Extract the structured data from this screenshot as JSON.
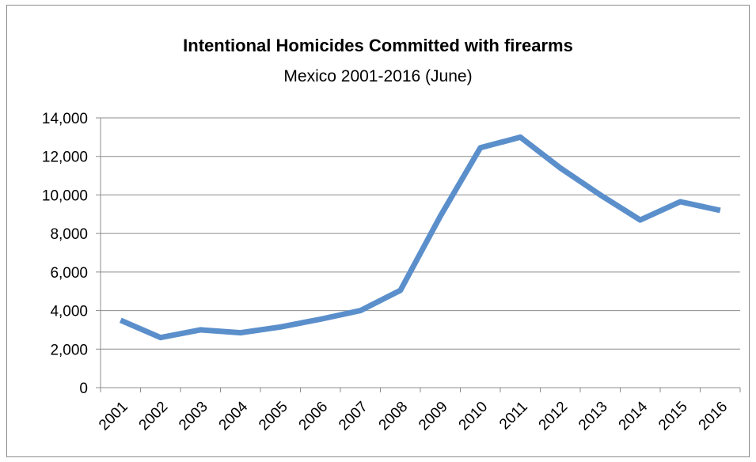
{
  "chart_data": {
    "type": "line",
    "title": "Intentional Homicides Committed with firearms",
    "subtitle": "Mexico 2001-2016 (June)",
    "xlabel": "",
    "ylabel": "",
    "categories": [
      "2001",
      "2002",
      "2003",
      "2004",
      "2005",
      "2006",
      "2007",
      "2008",
      "2009",
      "2010",
      "2011",
      "2012",
      "2013",
      "2014",
      "2015",
      "2016"
    ],
    "series": [
      {
        "values": [
          3500,
          2600,
          3000,
          2850,
          3150,
          3550,
          4000,
          5050,
          8900,
          12450,
          13000,
          11400,
          10000,
          8700,
          9650,
          9200
        ]
      }
    ],
    "ylim": [
      0,
      14000
    ],
    "yticks": [
      0,
      2000,
      4000,
      6000,
      8000,
      10000,
      12000,
      14000
    ],
    "ytick_labels": [
      "0",
      "2,000",
      "4,000",
      "6,000",
      "8,000",
      "10,000",
      "12,000",
      "14,000"
    ],
    "grid": true,
    "legend": "none",
    "line_color": "#5b8fcb"
  }
}
